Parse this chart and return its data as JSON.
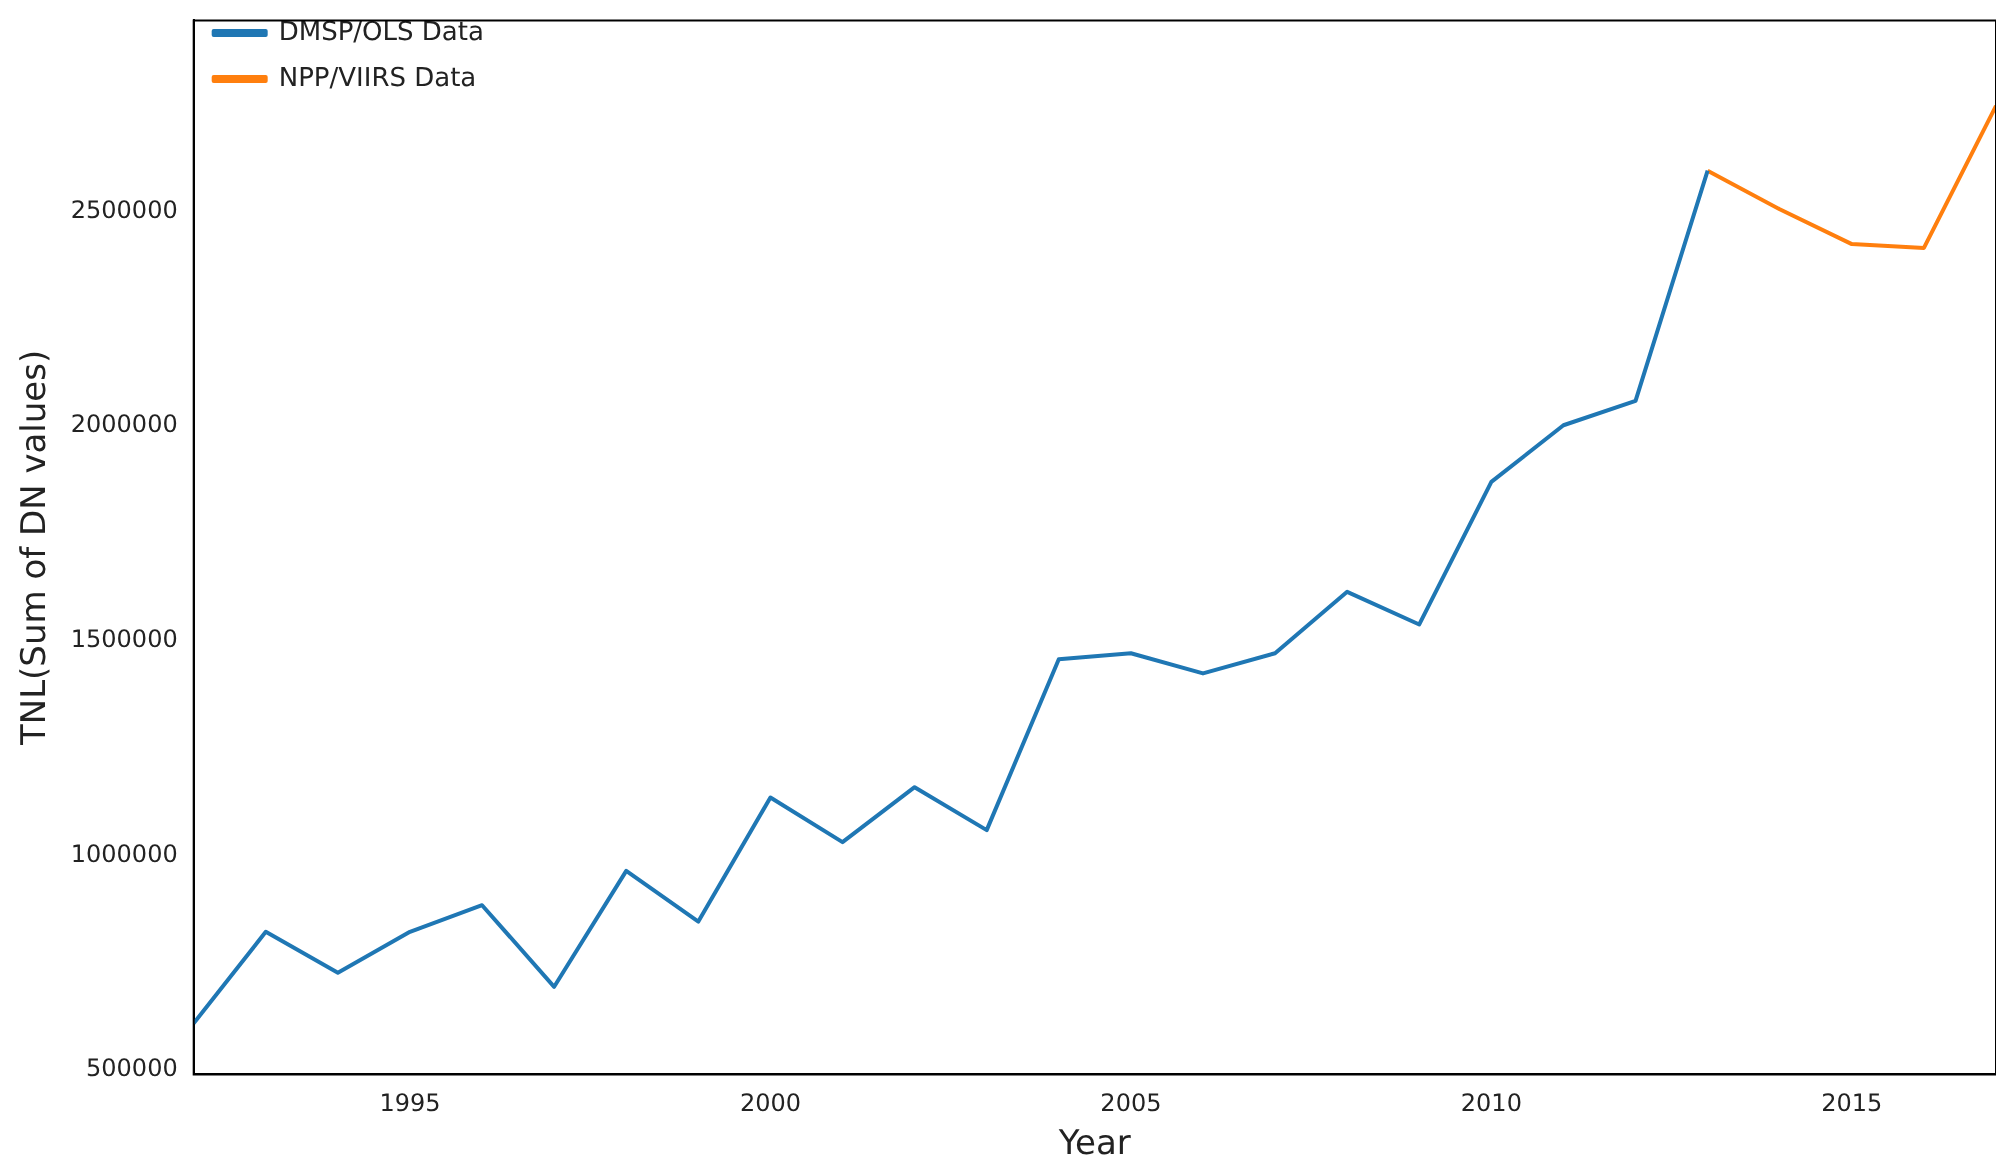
{
  "chart_data": {
    "type": "line",
    "xlabel": "Year",
    "ylabel": "TNL(Sum of DN values)",
    "series": [
      {
        "name": "DMSP/OLS Data",
        "color": "#1f77b4",
        "x": [
          1992,
          1993,
          1994,
          1995,
          1996,
          1997,
          1998,
          1999,
          2000,
          2001,
          2002,
          2003,
          2004,
          2005,
          2006,
          2007,
          2008,
          2009,
          2010,
          2011,
          2012,
          2013
        ],
        "values": [
          609000,
          822000,
          727000,
          822000,
          884000,
          694000,
          964000,
          846000,
          1135000,
          1031000,
          1159000,
          1059000,
          1457000,
          1471000,
          1424000,
          1471000,
          1614000,
          1538000,
          1870000,
          2002000,
          2059000,
          2595000
        ]
      },
      {
        "name": "NPP/VIIRS Data",
        "color": "#ff7f0e",
        "x": [
          2013,
          2014,
          2015,
          2016,
          2017
        ],
        "values": [
          2595000,
          2505000,
          2424000,
          2415000,
          2746000
        ]
      }
    ],
    "xlim": [
      1992,
      2017
    ],
    "xticks": [
      1995,
      2000,
      2005,
      2010,
      2015
    ],
    "ylim": [
      490000,
      2945000
    ],
    "yticks": [
      500000,
      1000000,
      1500000,
      2000000,
      2500000
    ],
    "grid": false,
    "legend": "top left",
    "marker": "none",
    "line_style": "solid"
  }
}
